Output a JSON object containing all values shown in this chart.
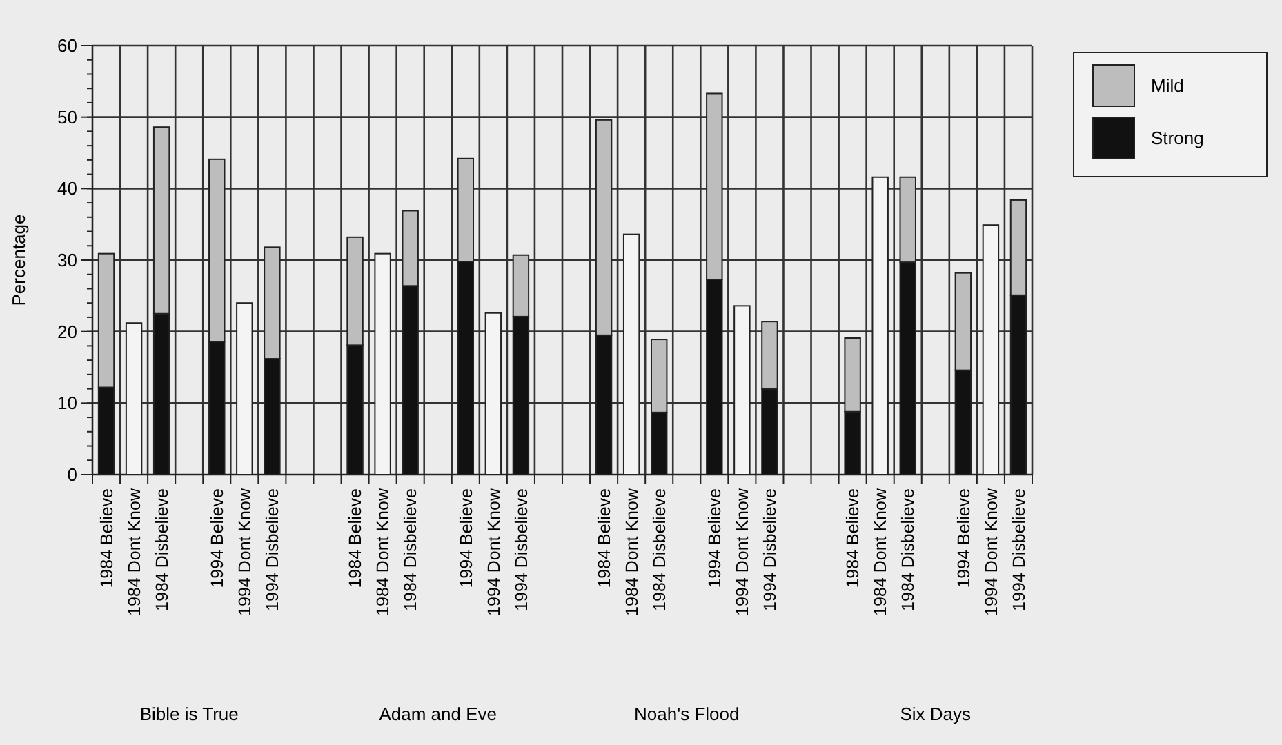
{
  "chart_data": {
    "type": "bar",
    "stacked": true,
    "ylabel": "Percentage",
    "categories": [
      "1984 Believe",
      "1984 Dont Know",
      "1984 Disbelieve",
      null,
      "1994 Believe",
      "1994 Dont Know",
      "1994 Disbelieve",
      null,
      null,
      "1984 Believe",
      "1984 Dont Know",
      "1984 Disbelieve",
      null,
      "1994 Believe",
      "1994 Dont Know",
      "1994 Disbelieve",
      null,
      null,
      "1984 Believe",
      "1984 Dont Know",
      "1984 Disbelieve",
      null,
      "1994 Believe",
      "1994 Dont Know",
      "1994 Disbelieve",
      null,
      null,
      "1984 Believe",
      "1984 Dont Know",
      "1984 Disbelieve",
      null,
      "1994 Believe",
      "1994 Dont Know",
      "1994 Disbelieve"
    ],
    "series": [
      {
        "name": "Strong",
        "color": "#111111",
        "values": [
          12.2,
          null,
          22.5,
          null,
          18.6,
          null,
          16.2,
          null,
          null,
          18.1,
          null,
          26.4,
          null,
          29.8,
          null,
          22.1,
          null,
          null,
          19.5,
          null,
          8.7,
          null,
          27.3,
          null,
          12.0,
          null,
          null,
          8.8,
          null,
          29.7,
          null,
          14.6,
          null,
          25.1
        ]
      },
      {
        "name": "Mild",
        "color": "#bdbdbd",
        "values": [
          18.7,
          null,
          26.1,
          null,
          25.5,
          null,
          15.6,
          null,
          null,
          15.1,
          null,
          10.5,
          null,
          14.4,
          null,
          8.6,
          null,
          null,
          30.1,
          null,
          10.2,
          null,
          26.0,
          null,
          9.4,
          null,
          null,
          10.3,
          null,
          11.9,
          null,
          13.6,
          null,
          13.3
        ]
      },
      {
        "color": "#f4f4f4",
        "values": [
          null,
          21.2,
          null,
          null,
          null,
          24.0,
          null,
          null,
          null,
          null,
          30.9,
          null,
          null,
          null,
          22.6,
          null,
          null,
          null,
          null,
          33.6,
          null,
          null,
          null,
          23.6,
          null,
          null,
          null,
          null,
          41.6,
          null,
          null,
          null,
          34.9,
          null
        ]
      }
    ],
    "ylim": [
      0,
      60
    ],
    "yticks": [
      0,
      10,
      20,
      30,
      40,
      50,
      60
    ],
    "grid": true,
    "legend": "top right",
    "annotations": [
      "Bible is True",
      "Adam and Eve",
      "Noah's Flood",
      "Six Days"
    ]
  }
}
